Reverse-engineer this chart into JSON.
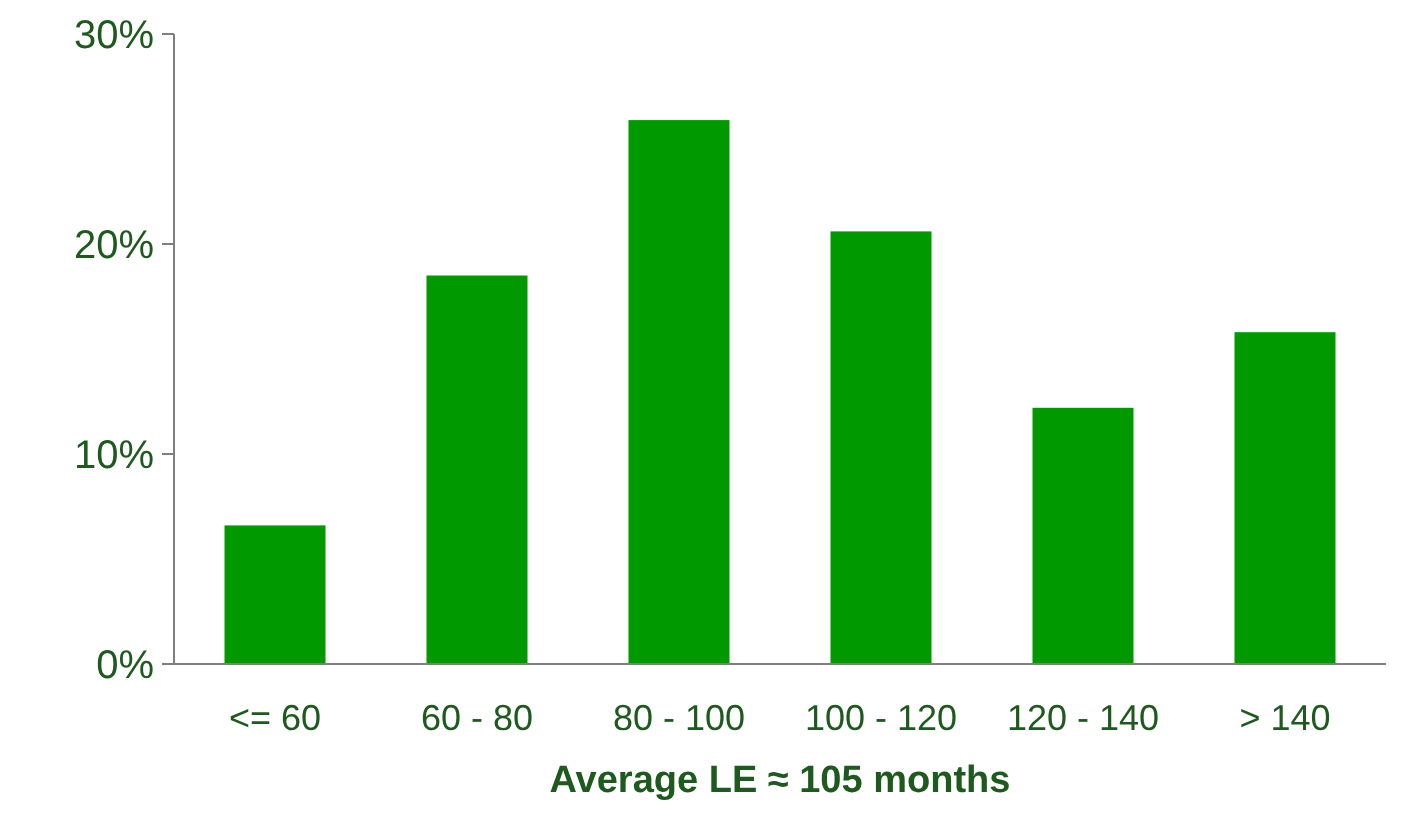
{
  "chart_data": {
    "type": "bar",
    "xlabel": "Average LE ≈ 105 months",
    "categories": [
      "<= 60",
      "60 - 80",
      "80 - 100",
      "100 - 120",
      "120 - 140",
      "> 140"
    ],
    "values": [
      6.6,
      18.5,
      25.9,
      20.6,
      12.2,
      15.8
    ],
    "color": "#009900",
    "ylim": [
      0,
      30
    ],
    "yticks": [
      {
        "value": 0,
        "label": "0%"
      },
      {
        "value": 10,
        "label": "10%"
      },
      {
        "value": 20,
        "label": "20%"
      },
      {
        "value": 30,
        "label": "30%"
      }
    ],
    "grid": false
  }
}
